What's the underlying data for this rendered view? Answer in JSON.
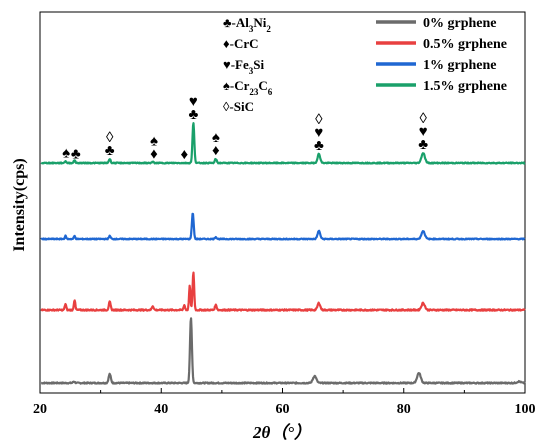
{
  "chart_data": {
    "type": "line",
    "xlabel": "2θ（°）",
    "ylabel": "Intensity(cps)",
    "xlim": [
      20,
      100
    ],
    "x_ticks": [
      20,
      40,
      60,
      80,
      100
    ],
    "grid": false,
    "legend_position": "top-right",
    "series": [
      {
        "name": "0% grphene",
        "color": "#6b6b6b",
        "baseline": 0,
        "noise": 0.6,
        "peaks": [
          {
            "x": 25.6,
            "h": 1.5,
            "w": 0.15
          },
          {
            "x": 31.5,
            "h": 9,
            "w": 0.18
          },
          {
            "x": 44.9,
            "h": 65,
            "w": 0.16
          },
          {
            "x": 65.3,
            "h": 7,
            "w": 0.28
          },
          {
            "x": 82.5,
            "h": 10,
            "w": 0.3
          },
          {
            "x": 99.0,
            "h": 1.5,
            "w": 0.3
          }
        ]
      },
      {
        "name": "0.5% grphene",
        "color": "#e84040",
        "baseline": 73,
        "noise": 0.7,
        "peaks": [
          {
            "x": 24.2,
            "h": 6,
            "w": 0.12
          },
          {
            "x": 25.7,
            "h": 10,
            "w": 0.12
          },
          {
            "x": 31.5,
            "h": 8,
            "w": 0.15
          },
          {
            "x": 38.6,
            "h": 4,
            "w": 0.15
          },
          {
            "x": 43.8,
            "h": 5,
            "w": 0.12
          },
          {
            "x": 44.7,
            "h": 24,
            "w": 0.12
          },
          {
            "x": 45.3,
            "h": 38,
            "w": 0.13
          },
          {
            "x": 49.0,
            "h": 5,
            "w": 0.15
          },
          {
            "x": 66.0,
            "h": 7,
            "w": 0.22
          },
          {
            "x": 83.2,
            "h": 7,
            "w": 0.28
          }
        ]
      },
      {
        "name": "1% grphene",
        "color": "#1f67d2",
        "baseline": 144,
        "noise": 0.5,
        "peaks": [
          {
            "x": 24.2,
            "h": 3,
            "w": 0.12
          },
          {
            "x": 25.7,
            "h": 3,
            "w": 0.12
          },
          {
            "x": 31.5,
            "h": 3,
            "w": 0.15
          },
          {
            "x": 45.2,
            "h": 26,
            "w": 0.15
          },
          {
            "x": 49.0,
            "h": 2,
            "w": 0.15
          },
          {
            "x": 66.0,
            "h": 8,
            "w": 0.22
          },
          {
            "x": 83.2,
            "h": 8,
            "w": 0.28
          }
        ]
      },
      {
        "name": "1.5% grphene",
        "color": "#1aa06a",
        "baseline": 220,
        "noise": 0.5,
        "peaks": [
          {
            "x": 24.2,
            "h": 2,
            "w": 0.12
          },
          {
            "x": 25.7,
            "h": 3,
            "w": 0.12
          },
          {
            "x": 31.5,
            "h": 4,
            "w": 0.15
          },
          {
            "x": 38.6,
            "h": 1,
            "w": 0.15
          },
          {
            "x": 45.3,
            "h": 40,
            "w": 0.15
          },
          {
            "x": 49.0,
            "h": 4,
            "w": 0.15
          },
          {
            "x": 66.0,
            "h": 9,
            "w": 0.22
          },
          {
            "x": 83.2,
            "h": 10,
            "w": 0.28
          }
        ]
      }
    ],
    "phase_legend": [
      {
        "symbol": "♣",
        "label": "-Al",
        "sub1": "3",
        "mid": "Ni",
        "sub2": "2"
      },
      {
        "symbol": "♦",
        "label": "-CrC",
        "sub1": "",
        "mid": "",
        "sub2": ""
      },
      {
        "symbol": "♥",
        "label": "-Fe",
        "sub1": "3",
        "mid": "Si",
        "sub2": ""
      },
      {
        "symbol": "♠",
        "label": "-Cr",
        "sub1": "23",
        "mid": "C",
        "sub2": "6"
      },
      {
        "symbol": "◊",
        "label": "-SiC",
        "sub1": "",
        "mid": "",
        "sub2": ""
      }
    ],
    "peak_annotations": [
      {
        "x": 24.3,
        "symbols": [
          "♠"
        ]
      },
      {
        "x": 25.9,
        "symbols": [
          "♣"
        ]
      },
      {
        "x": 31.5,
        "symbols": [
          "◊",
          "♣"
        ]
      },
      {
        "x": 38.8,
        "symbols": [
          "♠",
          "♦"
        ]
      },
      {
        "x": 43.8,
        "symbols": [
          "♦"
        ]
      },
      {
        "x": 45.3,
        "symbols": [
          "♥",
          "♣"
        ]
      },
      {
        "x": 49.0,
        "symbols": [
          "♠",
          "♦"
        ]
      },
      {
        "x": 66.0,
        "symbols": [
          "◊",
          "♥",
          "♣"
        ]
      },
      {
        "x": 83.2,
        "symbols": [
          "◊",
          "♥",
          "♣"
        ]
      }
    ]
  }
}
